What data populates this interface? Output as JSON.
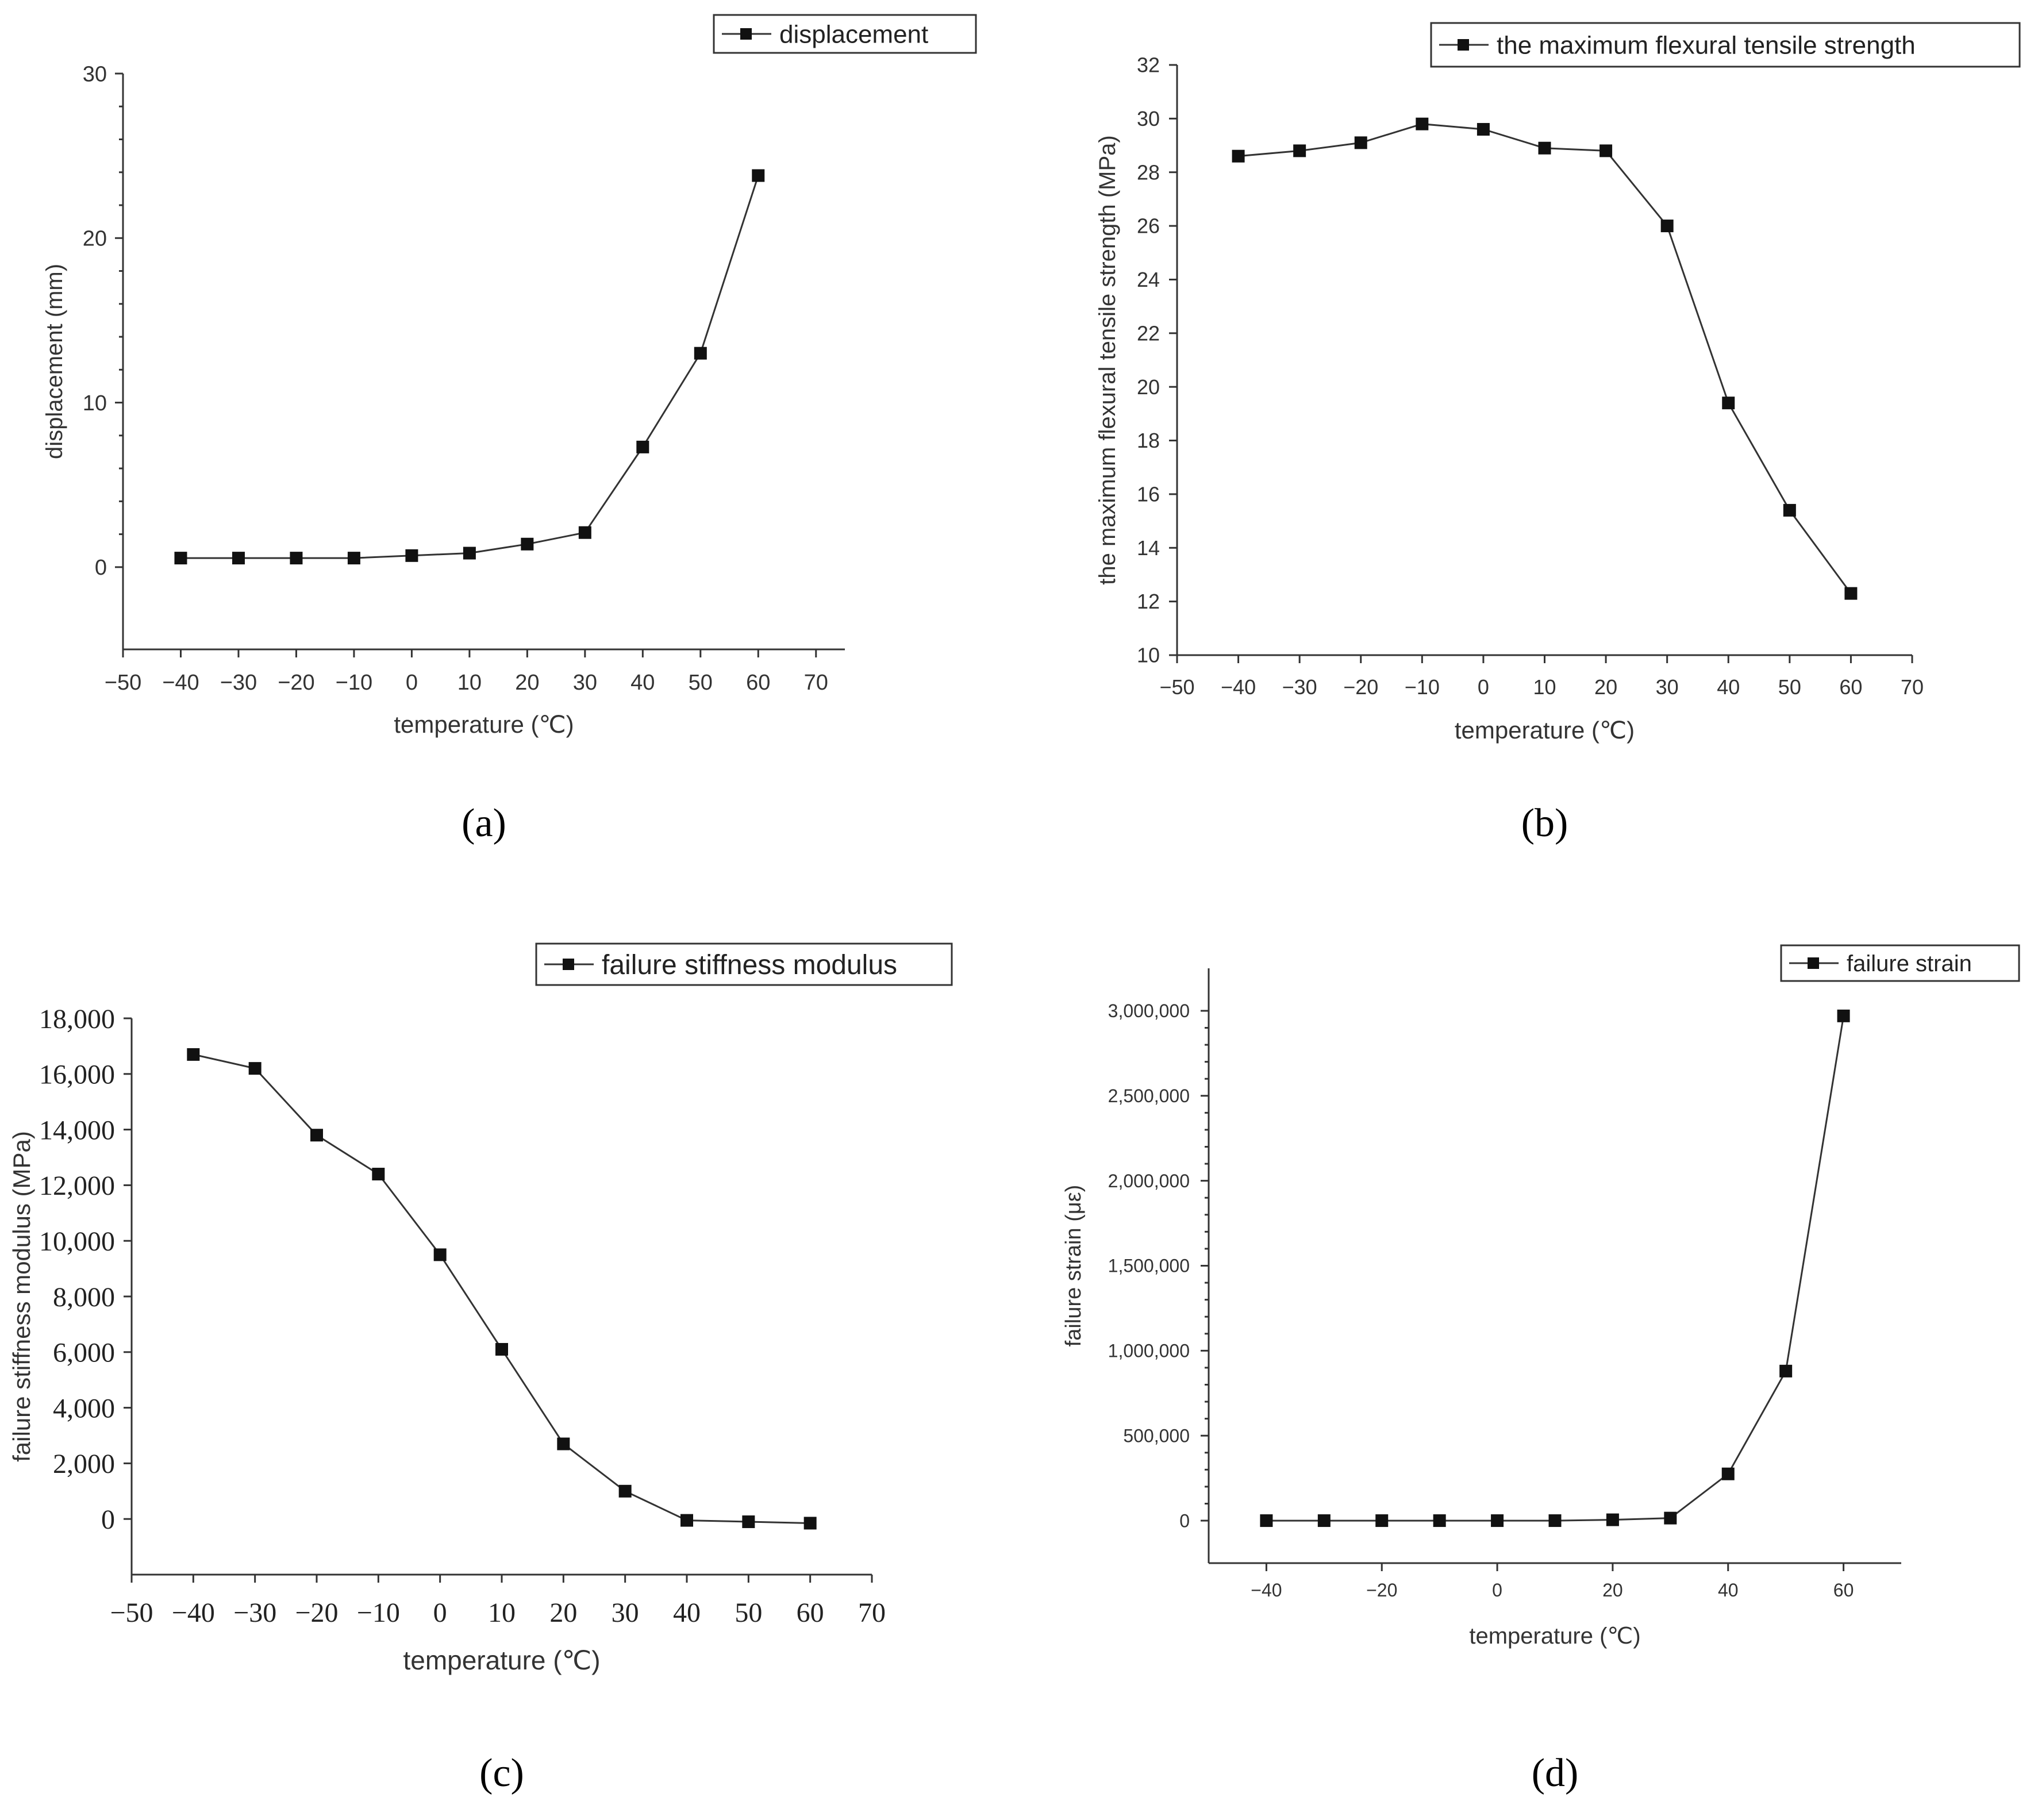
{
  "chart_data": [
    {
      "type": "line",
      "panel": "a",
      "x": [
        -40,
        -30,
        -20,
        -10,
        0,
        10,
        20,
        30,
        40,
        50,
        60
      ],
      "series": [
        {
          "name": "displacement",
          "values": [
            0.55,
            0.55,
            0.55,
            0.55,
            0.7,
            0.85,
            1.4,
            2.1,
            7.3,
            13.0,
            23.8
          ]
        }
      ],
      "xlabel": "temperature (℃)",
      "ylabel": "displacement (mm)",
      "xlim": [
        -50,
        75
      ],
      "ylim": [
        -5,
        30
      ],
      "xticks": [
        -50,
        -40,
        -30,
        -20,
        -10,
        0,
        10,
        20,
        30,
        40,
        50,
        60,
        70
      ],
      "yticks": [
        0,
        10,
        20,
        30
      ],
      "xtick_labels": [
        "−50",
        "−40",
        "−30",
        "−20",
        "−10",
        "0",
        "10",
        "20",
        "30",
        "40",
        "50",
        "60",
        "70"
      ],
      "ytick_labels": [
        "0",
        "10",
        "20",
        "30"
      ],
      "legend": [
        "displacement"
      ],
      "legend_position": "top-right",
      "caption": "(a)"
    },
    {
      "type": "line",
      "panel": "b",
      "x": [
        -40,
        -30,
        -20,
        -10,
        0,
        10,
        20,
        30,
        40,
        50,
        60
      ],
      "series": [
        {
          "name": "the maximum flexural tensile strength",
          "values": [
            28.6,
            28.8,
            29.1,
            29.8,
            29.6,
            28.9,
            28.8,
            26.0,
            19.4,
            15.4,
            12.3
          ]
        }
      ],
      "xlabel": "temperature (℃)",
      "ylabel": "the maximum flexural tensile strength (MPa)",
      "xlim": [
        -50,
        70
      ],
      "ylim": [
        10,
        32
      ],
      "xticks": [
        -50,
        -40,
        -30,
        -20,
        -10,
        0,
        10,
        20,
        30,
        40,
        50,
        60,
        70
      ],
      "yticks": [
        10,
        12,
        14,
        16,
        18,
        20,
        22,
        24,
        26,
        28,
        30,
        32
      ],
      "xtick_labels": [
        "−50",
        "−40",
        "−30",
        "−20",
        "−10",
        "0",
        "10",
        "20",
        "30",
        "40",
        "50",
        "60",
        "70"
      ],
      "ytick_labels": [
        "10",
        "12",
        "14",
        "16",
        "18",
        "20",
        "22",
        "24",
        "26",
        "28",
        "30",
        "32"
      ],
      "legend": [
        "the maximum flexural tensile strength"
      ],
      "legend_position": "top-right",
      "caption": "(b)"
    },
    {
      "type": "line",
      "panel": "c",
      "x": [
        -40,
        -30,
        -20,
        -10,
        0,
        10,
        20,
        30,
        40,
        50,
        60
      ],
      "series": [
        {
          "name": "failure stiffness modulus",
          "values": [
            16700,
            16200,
            13800,
            12400,
            9500,
            6100,
            2700,
            1000,
            -50,
            -100,
            -150
          ]
        }
      ],
      "xlabel": "temperature (℃)",
      "ylabel": "failure stiffness modulus (MPa)",
      "xlim": [
        -50,
        70
      ],
      "ylim": [
        -2000,
        18000
      ],
      "xticks": [
        -50,
        -40,
        -30,
        -20,
        -10,
        0,
        10,
        20,
        30,
        40,
        50,
        60,
        70
      ],
      "yticks": [
        0,
        2000,
        4000,
        6000,
        8000,
        10000,
        12000,
        14000,
        16000,
        18000
      ],
      "xtick_labels": [
        "−50",
        "−40",
        "−30",
        "−20",
        "−10",
        "0",
        "10",
        "20",
        "30",
        "40",
        "50",
        "60",
        "70"
      ],
      "ytick_labels": [
        "0",
        "2,000",
        "4,000",
        "6,000",
        "8,000",
        "10,000",
        "12,000",
        "14,000",
        "16,000",
        "18,000"
      ],
      "legend": [
        "failure stiffness modulus"
      ],
      "legend_position": "top-right",
      "caption": "(c)"
    },
    {
      "type": "line",
      "panel": "d",
      "x": [
        -40,
        -30,
        -20,
        -10,
        0,
        10,
        20,
        30,
        40,
        50,
        60
      ],
      "series": [
        {
          "name": "failure strain",
          "values": [
            0,
            0,
            0,
            0,
            0,
            0,
            5000,
            15000,
            275000,
            880000,
            2970000
          ]
        }
      ],
      "xlabel": "temperature (℃)",
      "ylabel": "failure strain (με)",
      "xlim": [
        -50,
        70
      ],
      "ylim": [
        -250000,
        3250000
      ],
      "xticks": [
        -40,
        -20,
        0,
        20,
        40,
        60
      ],
      "yticks": [
        0,
        500000,
        1000000,
        1500000,
        2000000,
        2500000,
        3000000
      ],
      "xtick_labels": [
        "−40",
        "−20",
        "0",
        "20",
        "40",
        "60"
      ],
      "ytick_labels": [
        "0",
        "500,000",
        "1,000,000",
        "1,500,000",
        "2,000,000",
        "2,500,000",
        "3,000,000"
      ],
      "legend": [
        "failure strain"
      ],
      "legend_position": "top-right",
      "caption": "(d)"
    }
  ],
  "colors": {
    "line": "#333333",
    "marker": "#111111",
    "text": "#222222"
  }
}
